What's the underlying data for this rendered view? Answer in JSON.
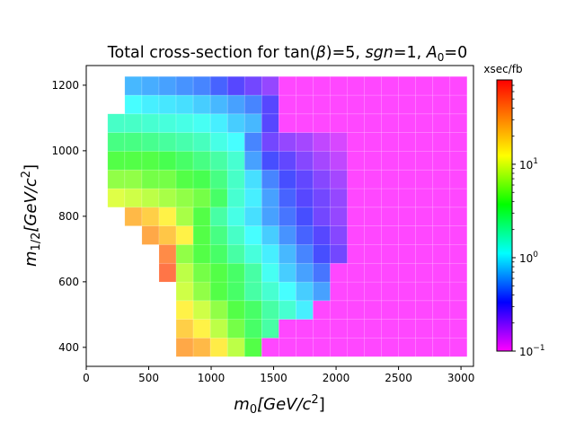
{
  "chart_data": {
    "type": "heatmap",
    "title_main": "Total cross-section for tan(",
    "title_beta": "β",
    "title_mid": ")=5, ",
    "title_sgn": "sgn",
    "title_eq1": "=1, ",
    "title_A": "A",
    "title_sub0": "0",
    "title_eq0": "=0",
    "xlabel_m": "m",
    "xlabel_sub": "0",
    "xlabel_rest": "[GeV/c",
    "xlabel_sup": "2",
    "xlabel_close": "]",
    "ylabel_m": "m",
    "ylabel_sub": "1/2",
    "ylabel_rest": "[GeV/c",
    "ylabel_sup": "2",
    "ylabel_close": "]",
    "xlim": [
      0,
      3100
    ],
    "ylim": [
      342,
      1260
    ],
    "x_ticks": [
      0,
      500,
      1000,
      1500,
      2000,
      2500,
      3000
    ],
    "y_ticks": [
      400,
      600,
      800,
      1000,
      1200
    ],
    "x_tick_labels": [
      "0",
      "500",
      "1000",
      "1500",
      "2000",
      "2500",
      "3000"
    ],
    "y_tick_labels": [
      "400",
      "600",
      "800",
      "1000",
      "1200"
    ],
    "colorbar": {
      "label": "xsec/fb",
      "scale": "log",
      "min": 0.1,
      "max": 80,
      "tick_base": "10",
      "tick_exps": [
        "−1",
        "0",
        "1"
      ],
      "tick_values": [
        0.1,
        1,
        10
      ]
    },
    "cell_size": {
      "x": 137,
      "y": 57
    },
    "x_bins": [
      240,
      377,
      514,
      651,
      788,
      925,
      1062,
      1199,
      1336,
      1473,
      1610,
      1747,
      1884,
      2021,
      2158,
      2295,
      2432,
      2569,
      2706,
      2843,
      2980
    ],
    "y_bins": [
      400,
      457,
      514,
      571,
      628,
      685,
      742,
      799,
      856,
      913,
      970,
      1027,
      1084,
      1141,
      1198
    ],
    "xsec_grid": [
      [
        null,
        null,
        null,
        null,
        30,
        25,
        15,
        8,
        4,
        0.1,
        0.1,
        0.1,
        0.1,
        0.1,
        0.1,
        0.1,
        0.1,
        0.1,
        0.1,
        0.1,
        0.1
      ],
      [
        null,
        null,
        null,
        null,
        20,
        14,
        8,
        5,
        3,
        2,
        0.1,
        0.1,
        0.1,
        0.1,
        0.1,
        0.1,
        0.1,
        0.1,
        0.1,
        0.1,
        0.1
      ],
      [
        null,
        null,
        null,
        null,
        14,
        9,
        6,
        4,
        3,
        2,
        1.5,
        1,
        0.1,
        0.1,
        0.1,
        0.1,
        0.1,
        0.1,
        0.1,
        0.1,
        0.1
      ],
      [
        null,
        null,
        null,
        null,
        9,
        6,
        4,
        3,
        2,
        1.5,
        1.1,
        0.8,
        0.6,
        0.1,
        0.1,
        0.1,
        0.1,
        0.1,
        0.1,
        0.1,
        0.1
      ],
      [
        null,
        null,
        null,
        50,
        8,
        5,
        4,
        3,
        2,
        1.2,
        0.8,
        0.6,
        0.45,
        0.1,
        0.1,
        0.1,
        0.1,
        0.1,
        0.1,
        0.1,
        0.1
      ],
      [
        null,
        null,
        null,
        40,
        6,
        4,
        3,
        2,
        1.4,
        1,
        0.7,
        0.5,
        0.35,
        0.25,
        0.1,
        0.1,
        0.1,
        0.1,
        0.1,
        0.1,
        0.1
      ],
      [
        null,
        null,
        30,
        22,
        14,
        4,
        2.5,
        1.6,
        1.1,
        0.8,
        0.55,
        0.4,
        0.3,
        0.22,
        0.1,
        0.1,
        0.1,
        0.1,
        0.1,
        0.1,
        0.1
      ],
      [
        null,
        25,
        20,
        14,
        7,
        4,
        2,
        1.3,
        0.9,
        0.6,
        0.45,
        0.35,
        0.25,
        0.2,
        0.1,
        0.1,
        0.1,
        0.1,
        0.1,
        0.1,
        0.1
      ],
      [
        10,
        9,
        8,
        7,
        6,
        5,
        3,
        1.5,
        1,
        0.6,
        0.4,
        0.3,
        0.25,
        0.2,
        0.1,
        0.1,
        0.1,
        0.1,
        0.1,
        0.1,
        0.1
      ],
      [
        6,
        6,
        5,
        5,
        4,
        3.5,
        2.5,
        1.6,
        0.9,
        0.5,
        0.35,
        0.28,
        0.22,
        0.18,
        0.1,
        0.1,
        0.1,
        0.1,
        0.1,
        0.1,
        0.1
      ],
      [
        4,
        4,
        4,
        3.5,
        3,
        2.5,
        2,
        1.5,
        0.6,
        0.35,
        0.28,
        0.22,
        0.18,
        0.15,
        0.1,
        0.1,
        0.1,
        0.1,
        0.1,
        0.1,
        0.1
      ],
      [
        2.5,
        2.5,
        2.3,
        2.1,
        1.9,
        1.7,
        1.3,
        1.1,
        0.5,
        0.25,
        0.2,
        0.18,
        0.15,
        0.13,
        0.1,
        0.1,
        0.1,
        0.1,
        0.1,
        0.1,
        0.1
      ],
      [
        1.6,
        1.6,
        1.5,
        1.4,
        1.3,
        1.2,
        1,
        0.8,
        0.7,
        0.3,
        0.1,
        0.1,
        0.1,
        0.1,
        0.1,
        0.1,
        0.1,
        0.1,
        0.1,
        0.1,
        0.1
      ],
      [
        null,
        1.1,
        1,
        0.95,
        0.9,
        0.8,
        0.7,
        0.6,
        0.5,
        0.3,
        0.1,
        0.1,
        0.1,
        0.1,
        0.1,
        0.1,
        0.1,
        0.1,
        0.1,
        0.1,
        0.1
      ],
      [
        null,
        0.7,
        0.65,
        0.6,
        0.55,
        0.5,
        0.4,
        0.3,
        0.25,
        0.2,
        0.1,
        0.1,
        0.1,
        0.1,
        0.1,
        0.1,
        0.1,
        0.1,
        0.1,
        0.1,
        0.1
      ]
    ]
  }
}
